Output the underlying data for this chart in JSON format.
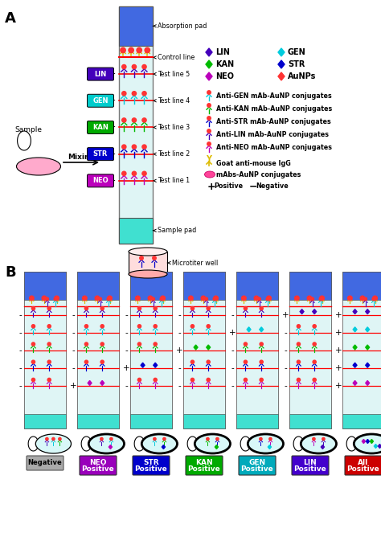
{
  "bg_color": "#ffffff",
  "absorption_pad_color": "#4169e1",
  "sample_pad_color": "#40e0d0",
  "strip_bg": "#dff5f5",
  "control_line_color": "#ff0000",
  "test_line_color": "#ff0000",
  "LIN_color": "#4400bb",
  "GEN_color": "#00ccdd",
  "KAN_color": "#00bb00",
  "STR_color": "#0000cc",
  "NEO_color": "#bb00bb",
  "AuNP_color": "#ff3333",
  "yellow_color": "#ddbb00",
  "pink_color": "#ff4499",
  "strips_B_signs": {
    "Negative": [
      "-",
      "-",
      "-",
      "-",
      "-"
    ],
    "NEO Positive": [
      "+",
      "-",
      "-",
      "-",
      "-"
    ],
    "STR Positive": [
      "-",
      "+",
      "-",
      "-",
      "-"
    ],
    "KAN Positive": [
      "-",
      "-",
      "+",
      "-",
      "-"
    ],
    "GEN Positive": [
      "-",
      "-",
      "-",
      "+",
      "-"
    ],
    "LIN Positive": [
      "-",
      "-",
      "-",
      "-",
      "+"
    ],
    "All Positive": [
      "+",
      "+",
      "+",
      "+",
      "+"
    ]
  },
  "strip_label_colors": [
    "#aaaaaa",
    "#9900bb",
    "#0000cc",
    "#00aa00",
    "#00aabb",
    "#4400cc",
    "#cc0000"
  ],
  "strip_names": [
    "Negative",
    "NEO Positive",
    "STR Positive",
    "KAN Positive",
    "GEN Positive",
    "LIN Positive",
    "All Positive"
  ]
}
